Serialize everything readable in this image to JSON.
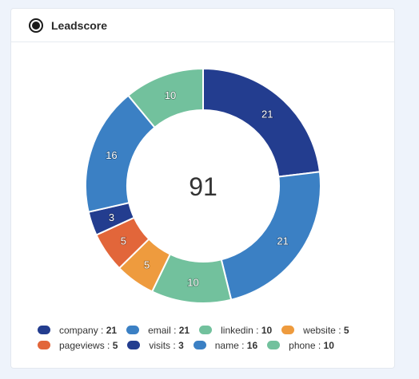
{
  "header": {
    "title": "Leadscore"
  },
  "chart_data": {
    "type": "pie",
    "total": "91",
    "slices": [
      {
        "label": "company",
        "value": 21,
        "color": "#233d8f"
      },
      {
        "label": "email",
        "value": 21,
        "color": "#3b80c4"
      },
      {
        "label": "linkedin",
        "value": 10,
        "color": "#72c19d"
      },
      {
        "label": "website",
        "value": 5,
        "color": "#ee9b3e"
      },
      {
        "label": "pageviews",
        "value": 5,
        "color": "#e2663a"
      },
      {
        "label": "visits",
        "value": 3,
        "color": "#233d8f"
      },
      {
        "label": "name",
        "value": 16,
        "color": "#3b80c4"
      },
      {
        "label": "phone",
        "value": 10,
        "color": "#72c19d"
      }
    ]
  }
}
